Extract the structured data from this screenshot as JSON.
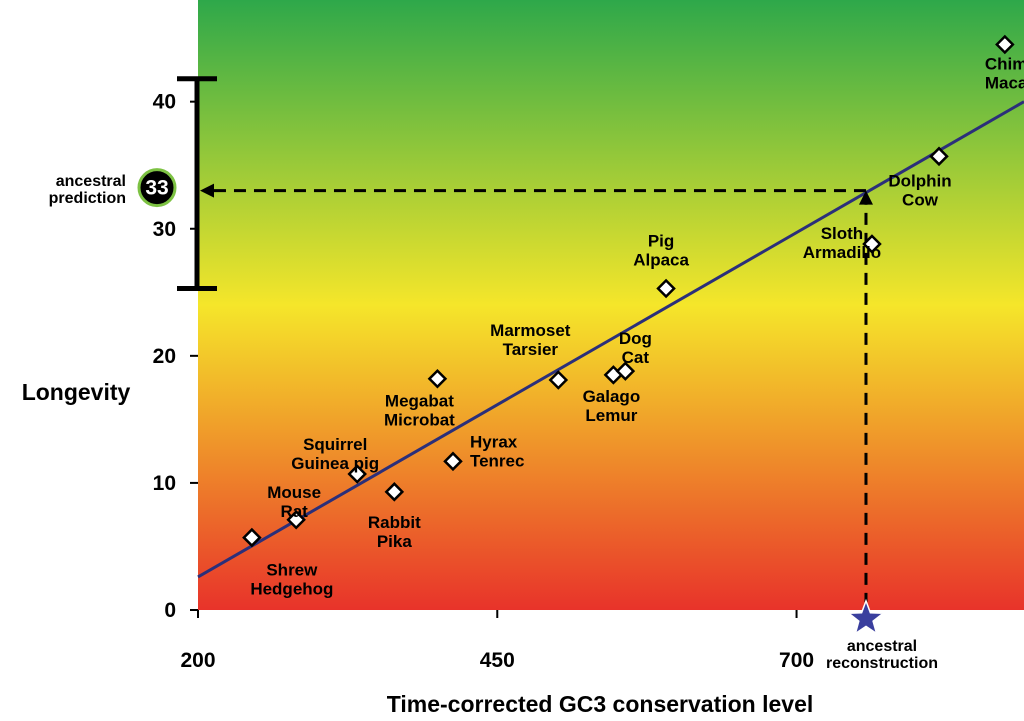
{
  "chart_data": {
    "type": "scatter",
    "title": "",
    "xlabel": "Time-corrected GC3 conservation level",
    "ylabel": "Longevity",
    "xlim": [
      200,
      890
    ],
    "ylim": [
      0,
      48
    ],
    "xticks": [
      200,
      450,
      700
    ],
    "yticks": [
      0,
      10,
      20,
      30,
      40
    ],
    "background_gradient": {
      "top": "#2ea84a",
      "middle": "#f5e62a",
      "bottom": "#e8332a"
    },
    "trend_line": {
      "x": [
        200,
        890
      ],
      "y": [
        2.6,
        40.0
      ],
      "color": "#2b2f7a"
    },
    "points": [
      {
        "x": 245,
        "y": 5.7,
        "labels": [
          "Shrew",
          "Hedgehog"
        ]
      },
      {
        "x": 282,
        "y": 7.1,
        "labels": [
          "Mouse",
          "Rat"
        ]
      },
      {
        "x": 333,
        "y": 10.7,
        "labels": [
          "Squirrel",
          "Guinea pig"
        ]
      },
      {
        "x": 364,
        "y": 9.3,
        "labels": [
          "Rabbit",
          "Pika"
        ]
      },
      {
        "x": 400,
        "y": 18.2,
        "labels": [
          "Megabat",
          "Microbat"
        ]
      },
      {
        "x": 413,
        "y": 11.7,
        "labels": [
          "Hyrax",
          "Tenrec"
        ]
      },
      {
        "x": 501,
        "y": 18.1,
        "labels": [
          "Marmoset",
          "Tarsier"
        ]
      },
      {
        "x": 547,
        "y": 18.5,
        "labels": [
          "Galago",
          "Lemur"
        ]
      },
      {
        "x": 557,
        "y": 18.8,
        "labels": [
          "Dog",
          "Cat"
        ]
      },
      {
        "x": 591,
        "y": 25.3,
        "labels": [
          "Pig",
          "Alpaca"
        ]
      },
      {
        "x": 763,
        "y": 28.8,
        "labels": [
          "Sloth",
          "Armadillo"
        ]
      },
      {
        "x": 819,
        "y": 35.7,
        "labels": [
          "Dolphin",
          "Cow"
        ]
      },
      {
        "x": 874,
        "y": 44.5,
        "labels": [
          "Chimp",
          "Macaca"
        ]
      }
    ],
    "prediction": {
      "value": 33,
      "range": [
        25.3,
        41.8
      ],
      "label_lines": [
        "ancestral",
        "prediction"
      ],
      "badge": "33"
    },
    "reconstruction": {
      "x": 758,
      "y": -0.7,
      "label_lines": [
        "ancestral",
        "reconstruction"
      ]
    },
    "colors": {
      "marker_fill": "#ffffff",
      "marker_stroke": "#000000",
      "star": "#3a3f9e",
      "badge_fill": "#000000",
      "badge_ring": "#7dc243"
    }
  }
}
